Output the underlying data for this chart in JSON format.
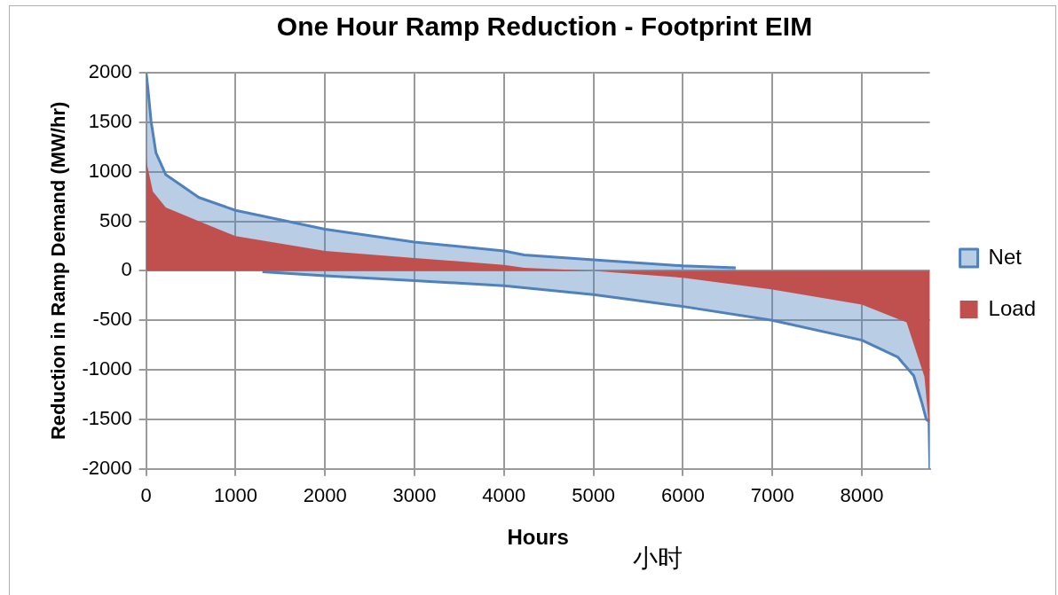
{
  "chart_data": {
    "type": "area",
    "title": "One Hour Ramp Reduction - Footprint EIM",
    "xlabel": "Hours",
    "ylabel": "Reduction in Ramp Demand (MW/hr)",
    "series": [
      {
        "name": "Net",
        "color": "#4f81bd",
        "x": [
          0,
          20,
          55,
          110,
          220,
          590,
          1000,
          2000,
          3000,
          4000,
          4225,
          5000,
          6000,
          6590
        ],
        "values": [
          2000,
          1840,
          1510,
          1190,
          970,
          740,
          610,
          420,
          290,
          200,
          160,
          110,
          50,
          30
        ]
      },
      {
        "color": "#4f81bd",
        "x": [
          1300,
          2000,
          3000,
          4000,
          5000,
          6000,
          7000,
          8000,
          8400,
          8580,
          8670,
          8720,
          8750,
          8760
        ],
        "values": [
          -10,
          -50,
          -100,
          -150,
          -240,
          -360,
          -500,
          -700,
          -870,
          -1060,
          -1330,
          -1500,
          -1520,
          -2000
        ]
      },
      {
        "name": "Load",
        "color": "#c0504d",
        "x": [
          0,
          15,
          75,
          220,
          590,
          1000,
          2000,
          3000,
          4000,
          4225,
          5000,
          6000,
          7000,
          8000,
          8500,
          8700,
          8745,
          8760
        ],
        "values": [
          1150,
          1050,
          800,
          640,
          500,
          350,
          200,
          130,
          60,
          30,
          0,
          -70,
          -190,
          -340,
          -520,
          -1070,
          -1520,
          -1520
        ]
      }
    ],
    "xlim": [
      0,
      8760
    ],
    "xticks": [
      0,
      1000,
      2000,
      3000,
      4000,
      5000,
      6000,
      7000,
      8000
    ],
    "ylim": [
      -2000,
      2000
    ],
    "yticks": [
      -2000,
      -1500,
      -1000,
      -500,
      0,
      500,
      1000,
      1500,
      2000
    ],
    "grid": true,
    "legend": "right",
    "annotations": [
      "小时"
    ]
  }
}
